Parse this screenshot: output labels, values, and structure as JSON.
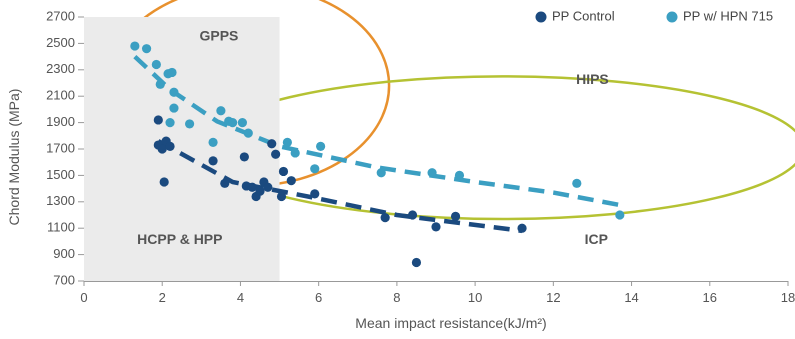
{
  "chart_data": {
    "type": "scatter",
    "xlabel": "Mean impact resistance(kJ/m²)",
    "ylabel": "Chord Modulus (MPa)",
    "xlim": [
      0,
      18
    ],
    "ylim": [
      700,
      2700
    ],
    "xticks": [
      "0",
      "2",
      "4",
      "6",
      "8",
      "10",
      "12",
      "14",
      "16",
      "18"
    ],
    "yticks": [
      "700",
      "900",
      "1100",
      "1300",
      "1500",
      "1700",
      "1900",
      "2100",
      "2300",
      "2500",
      "2700"
    ],
    "legend_position": "top-right",
    "grid": false,
    "series": [
      {
        "name": "PP Control",
        "color": "#1b4a7f",
        "points": [
          [
            1.9,
            1920
          ],
          [
            1.9,
            1730
          ],
          [
            2.0,
            1700
          ],
          [
            2.05,
            1450
          ],
          [
            2.1,
            1760
          ],
          [
            2.2,
            1720
          ],
          [
            3.3,
            1610
          ],
          [
            3.6,
            1440
          ],
          [
            4.1,
            1640
          ],
          [
            4.15,
            1420
          ],
          [
            4.3,
            1410
          ],
          [
            4.4,
            1340
          ],
          [
            4.5,
            1380
          ],
          [
            4.6,
            1450
          ],
          [
            4.7,
            1410
          ],
          [
            4.8,
            1740
          ],
          [
            4.9,
            1660
          ],
          [
            5.05,
            1340
          ],
          [
            5.1,
            1530
          ],
          [
            5.3,
            1460
          ],
          [
            5.9,
            1360
          ],
          [
            7.7,
            1180
          ],
          [
            8.4,
            1200
          ],
          [
            8.5,
            840
          ],
          [
            9.0,
            1110
          ],
          [
            9.5,
            1190
          ],
          [
            11.2,
            1100
          ]
        ],
        "trend": [
          [
            1.9,
            1760
          ],
          [
            3.8,
            1450
          ],
          [
            5.9,
            1330
          ],
          [
            8.0,
            1200
          ],
          [
            11.2,
            1080
          ]
        ]
      },
      {
        "name": "PP w/ HPN 715",
        "color": "#3b9fc2",
        "points": [
          [
            1.3,
            2480
          ],
          [
            1.6,
            2460
          ],
          [
            1.85,
            2340
          ],
          [
            1.95,
            2190
          ],
          [
            2.15,
            2270
          ],
          [
            2.25,
            2280
          ],
          [
            2.3,
            2130
          ],
          [
            2.3,
            2010
          ],
          [
            2.2,
            1900
          ],
          [
            2.7,
            1890
          ],
          [
            3.3,
            1750
          ],
          [
            3.5,
            1990
          ],
          [
            3.7,
            1910
          ],
          [
            3.8,
            1900
          ],
          [
            4.05,
            1900
          ],
          [
            4.2,
            1820
          ],
          [
            5.2,
            1750
          ],
          [
            5.4,
            1670
          ],
          [
            5.9,
            1550
          ],
          [
            6.05,
            1720
          ],
          [
            7.6,
            1520
          ],
          [
            8.9,
            1520
          ],
          [
            9.6,
            1500
          ],
          [
            12.6,
            1440
          ],
          [
            13.7,
            1200
          ]
        ],
        "trend": [
          [
            1.3,
            2400
          ],
          [
            2.2,
            2150
          ],
          [
            3.4,
            1910
          ],
          [
            5.0,
            1720
          ],
          [
            7.5,
            1560
          ],
          [
            10.0,
            1450
          ],
          [
            12.0,
            1370
          ],
          [
            13.8,
            1270
          ]
        ]
      }
    ],
    "regions": [
      {
        "label": "GPPS",
        "shape": "ellipse",
        "color": "#e8912e",
        "center": [
          4.2,
          2180
        ],
        "radius_x": 3.6,
        "radius_y": 760
      },
      {
        "label": "HIPS",
        "shape": "ellipse",
        "color": "#b5c233",
        "center": [
          10.7,
          1710
        ],
        "radius_x": 7.7,
        "radius_y": 540
      },
      {
        "label": "HCPP & HPP",
        "shape": "rect",
        "color": "#ebebeb",
        "x_range": [
          0,
          5
        ],
        "y_range": [
          700,
          2700
        ]
      },
      {
        "label": "ICP",
        "shape": "text",
        "color": "#555555",
        "anchor": [
          13.1,
          1010
        ]
      }
    ],
    "region_label_anchors": {
      "GPPS": [
        3.45,
        2550
      ],
      "HIPS": [
        13.0,
        2220
      ],
      "HCPP & HPP": [
        2.45,
        1010
      ],
      "ICP": [
        13.1,
        1010
      ]
    }
  }
}
